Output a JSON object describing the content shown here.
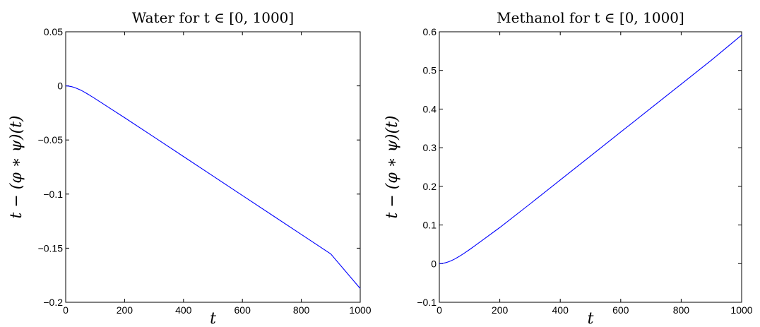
{
  "chart_data": [
    {
      "type": "line",
      "title": "Water for t ∈ [0, 1000]",
      "xlabel": "t",
      "ylabel": "t − (φ ∗ ψ)(t)",
      "xlim": [
        0,
        1000
      ],
      "ylim": [
        -0.2,
        0.05
      ],
      "xticks": [
        0,
        200,
        400,
        600,
        800,
        1000
      ],
      "xtick_labels": [
        "0",
        "200",
        "400",
        "600",
        "800",
        "1000"
      ],
      "yticks": [
        0.05,
        0,
        -0.05,
        -0.1,
        -0.15,
        -0.2
      ],
      "ytick_labels": [
        "0.05",
        "0",
        "−0.05",
        "−0.1",
        "−0.15",
        "−0.2"
      ],
      "grid": false,
      "color": "#0000ff",
      "series": [
        {
          "x": [
            0,
            10,
            20,
            30,
            40,
            50,
            60,
            70,
            80,
            100,
            120,
            150,
            200,
            300,
            400,
            500,
            600,
            700,
            800,
            900,
            1000
          ],
          "values": [
            0,
            -0.0002,
            -0.0007,
            -0.0015,
            -0.0026,
            -0.0038,
            -0.0052,
            -0.0068,
            -0.0084,
            -0.0118,
            -0.0153,
            -0.0206,
            -0.0294,
            -0.0473,
            -0.0653,
            -0.0833,
            -0.1013,
            -0.1193,
            -0.1373,
            -0.1553,
            -0.1873
          ]
        }
      ]
    },
    {
      "type": "line",
      "title": "Methanol for t ∈ [0, 1000]",
      "xlabel": "t",
      "ylabel": "t − (φ ∗ ψ)(t)",
      "xlim": [
        0,
        1000
      ],
      "ylim": [
        -0.1,
        0.6
      ],
      "xticks": [
        0,
        200,
        400,
        600,
        800,
        1000
      ],
      "xtick_labels": [
        "0",
        "200",
        "400",
        "600",
        "800",
        "1000"
      ],
      "yticks": [
        0.6,
        0.5,
        0.4,
        0.3,
        0.2,
        0.1,
        0,
        -0.1
      ],
      "ytick_labels": [
        "0.6",
        "0.5",
        "0.4",
        "0.3",
        "0.2",
        "0.1",
        "0",
        "−0.1"
      ],
      "grid": false,
      "color": "#0000ff",
      "series": [
        {
          "x": [
            0,
            10,
            20,
            30,
            40,
            50,
            60,
            70,
            80,
            100,
            120,
            150,
            200,
            300,
            400,
            500,
            600,
            700,
            800,
            900,
            1000
          ],
          "values": [
            0,
            0.0006,
            0.0022,
            0.0046,
            0.0078,
            0.0116,
            0.016,
            0.0207,
            0.0257,
            0.0364,
            0.0476,
            0.0649,
            0.0935,
            0.1545,
            0.2165,
            0.2785,
            0.3405,
            0.4025,
            0.4645,
            0.5265,
            0.5915
          ]
        }
      ]
    }
  ]
}
